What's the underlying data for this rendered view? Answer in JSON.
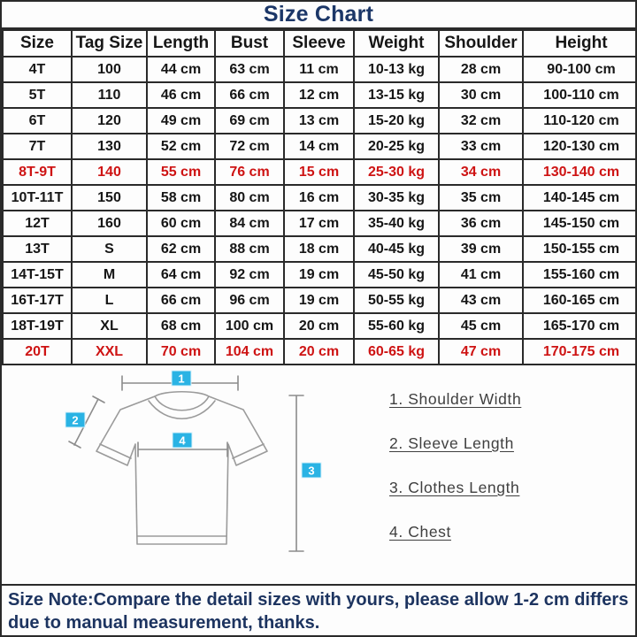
{
  "title": "Size Chart",
  "table": {
    "headers": [
      "Size",
      "Tag Size",
      "Length",
      "Bust",
      "Sleeve",
      "Weight",
      "Shoulder",
      "Height"
    ],
    "rows": [
      {
        "highlight": false,
        "cells": [
          "4T",
          "100",
          "44 cm",
          "63 cm",
          "11 cm",
          "10-13 kg",
          "28 cm",
          "90-100 cm"
        ]
      },
      {
        "highlight": false,
        "cells": [
          "5T",
          "110",
          "46 cm",
          "66 cm",
          "12 cm",
          "13-15 kg",
          "30 cm",
          "100-110 cm"
        ]
      },
      {
        "highlight": false,
        "cells": [
          "6T",
          "120",
          "49 cm",
          "69 cm",
          "13 cm",
          "15-20 kg",
          "32 cm",
          "110-120 cm"
        ]
      },
      {
        "highlight": false,
        "cells": [
          "7T",
          "130",
          "52 cm",
          "72 cm",
          "14 cm",
          "20-25 kg",
          "33 cm",
          "120-130 cm"
        ]
      },
      {
        "highlight": true,
        "cells": [
          "8T-9T",
          "140",
          "55 cm",
          "76 cm",
          "15 cm",
          "25-30 kg",
          "34 cm",
          "130-140 cm"
        ]
      },
      {
        "highlight": false,
        "cells": [
          "10T-11T",
          "150",
          "58 cm",
          "80 cm",
          "16 cm",
          "30-35 kg",
          "35 cm",
          "140-145 cm"
        ]
      },
      {
        "highlight": false,
        "cells": [
          "12T",
          "160",
          "60 cm",
          "84 cm",
          "17 cm",
          "35-40 kg",
          "36 cm",
          "145-150 cm"
        ]
      },
      {
        "highlight": false,
        "cells": [
          "13T",
          "S",
          "62 cm",
          "88 cm",
          "18 cm",
          "40-45 kg",
          "39 cm",
          "150-155 cm"
        ]
      },
      {
        "highlight": false,
        "cells": [
          "14T-15T",
          "M",
          "64 cm",
          "92 cm",
          "19 cm",
          "45-50 kg",
          "41 cm",
          "155-160 cm"
        ]
      },
      {
        "highlight": false,
        "cells": [
          "16T-17T",
          "L",
          "66 cm",
          "96 cm",
          "19 cm",
          "50-55 kg",
          "43 cm",
          "160-165 cm"
        ]
      },
      {
        "highlight": false,
        "cells": [
          "18T-19T",
          "XL",
          "68 cm",
          "100 cm",
          "20 cm",
          "55-60 kg",
          "45 cm",
          "165-170 cm"
        ]
      },
      {
        "highlight": true,
        "cells": [
          "20T",
          "XXL",
          "70 cm",
          "104 cm",
          "20 cm",
          "60-65 kg",
          "47 cm",
          "170-175 cm"
        ]
      }
    ]
  },
  "diagram": {
    "markers": [
      "1",
      "2",
      "3",
      "4"
    ],
    "legend": [
      "1. Shoulder Width",
      "2. Sleeve Length",
      "3. Clothes Length",
      "4. Chest"
    ]
  },
  "note": {
    "text": "Size Note:Compare the detail sizes with yours, please allow 1-2 cm  differs due to manual measurement, thanks."
  },
  "colors": {
    "title_navy": "#1c3768",
    "note_navy": "#1d3460",
    "highlight_red": "#ce1313",
    "marker_cyan": "#2ab3e4",
    "grid_line": "#2a2a2a",
    "tshirt_outline": "#9b9b9b",
    "legend_text": "#3f3f3f"
  }
}
